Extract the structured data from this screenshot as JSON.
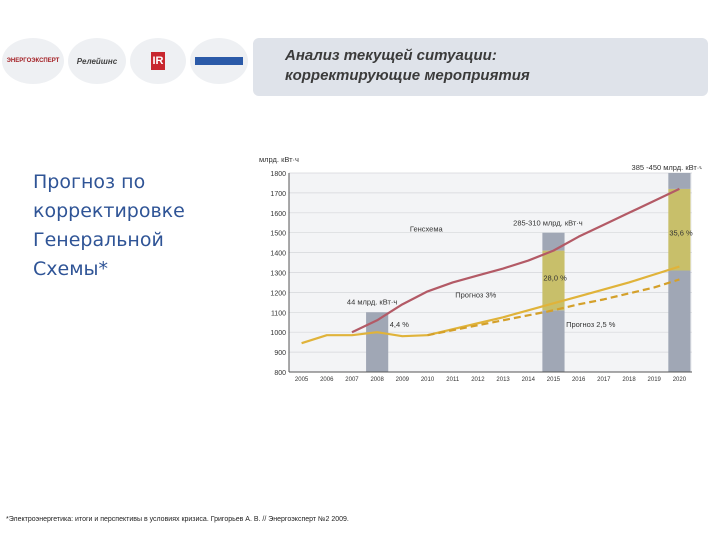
{
  "header": {
    "title_line1": "Анализ текущей ситуации:",
    "title_line2": "корректирующие мероприятия"
  },
  "logos": [
    {
      "name": "energoexpert-logo",
      "text": "ЭНЕРГОЭКСПЕРТ"
    },
    {
      "name": "relejshn-logo",
      "text": "Релейшнс"
    },
    {
      "name": "ir-logo",
      "text": "IR"
    },
    {
      "name": "blue-badge-logo",
      "text": ""
    }
  ],
  "side_title": {
    "line1": "Прогноз по",
    "line2": "корректировке",
    "line3": "Генеральной",
    "line4": "Схемы*"
  },
  "footnote": "*Электроэнергетика: итоги и перспективы в условиях кризиса. Григорьев А. В. // Энергоэксперт №2 2009.",
  "chart_data": {
    "type": "line",
    "ylabel": "млрд. кВт·ч",
    "ylim": [
      800,
      1800
    ],
    "yticks": [
      800,
      900,
      1000,
      1100,
      1200,
      1300,
      1400,
      1500,
      1600,
      1700,
      1800
    ],
    "x": [
      2005,
      2006,
      2007,
      2008,
      2009,
      2010,
      2011,
      2012,
      2013,
      2014,
      2015,
      2016,
      2017,
      2018,
      2019,
      2020
    ],
    "grid": true,
    "series": [
      {
        "name": "Генсхема",
        "color": "#b35a66",
        "style": "solid",
        "x": [
          2007,
          2008,
          2009,
          2010,
          2011,
          2012,
          2013,
          2014,
          2015,
          2016,
          2017,
          2018,
          2019,
          2020
        ],
        "values": [
          1000,
          1060,
          1140,
          1205,
          1250,
          1285,
          1320,
          1360,
          1410,
          1480,
          1540,
          1600,
          1660,
          1720
        ]
      },
      {
        "name": "",
        "color": "#e0b33a",
        "style": "solid",
        "x": [
          2005,
          2006,
          2007,
          2008,
          2009,
          2010
        ],
        "values": [
          945,
          985,
          985,
          1000,
          980,
          985
        ]
      },
      {
        "name": "Прогноз 3%",
        "color": "#e0b33a",
        "style": "solid",
        "x": [
          2010,
          2011,
          2012,
          2013,
          2014,
          2015,
          2016,
          2017,
          2018,
          2019,
          2020
        ],
        "values": [
          985,
          1015,
          1045,
          1075,
          1110,
          1145,
          1180,
          1215,
          1250,
          1290,
          1330
        ]
      },
      {
        "name": "Прогноз 2,5 %",
        "color": "#d4a02a",
        "style": "dashed",
        "x": [
          2010,
          2011,
          2012,
          2013,
          2014,
          2015,
          2016,
          2017,
          2018,
          2019,
          2020
        ],
        "values": [
          985,
          1010,
          1035,
          1060,
          1085,
          1110,
          1140,
          1165,
          1195,
          1225,
          1265
        ]
      }
    ],
    "bars": [
      {
        "x": 2008,
        "bottom": 800,
        "top": 1100,
        "color": "#a0a7b5"
      },
      {
        "x": 2015,
        "bottom": 800,
        "top": 1110,
        "color": "#a0a7b5"
      },
      {
        "x": 2015,
        "bottom": 1110,
        "top": 1410,
        "color": "#c8bf6a"
      },
      {
        "x": 2015,
        "bottom": 1410,
        "top": 1500,
        "color": "#a0a7b5"
      },
      {
        "x": 2020,
        "bottom": 800,
        "top": 1310,
        "color": "#a0a7b5"
      },
      {
        "x": 2020,
        "bottom": 1310,
        "top": 1720,
        "color": "#c8bf6a"
      },
      {
        "x": 2020,
        "bottom": 1720,
        "top": 1800,
        "color": "#a0a7b5"
      }
    ],
    "annotations": [
      {
        "text": "385 -450 млрд. кВт·ч",
        "x": 2018.1,
        "y": 1815,
        "color": "#333333"
      },
      {
        "text": "285-310 млрд. кВт·ч",
        "x": 2013.4,
        "y": 1535,
        "color": "#333333"
      },
      {
        "text": "Генсхема",
        "x": 2009.3,
        "y": 1505,
        "color": "#333333"
      },
      {
        "text": "35,6 %",
        "x": 2019.6,
        "y": 1485,
        "color": "#333333"
      },
      {
        "text": "28,0 %",
        "x": 2014.6,
        "y": 1260,
        "color": "#333333"
      },
      {
        "text": "Прогноз 3%",
        "x": 2011.1,
        "y": 1175,
        "color": "#333333"
      },
      {
        "text": "44 млрд. кВт·ч",
        "x": 2006.8,
        "y": 1140,
        "color": "#333333"
      },
      {
        "text": "4,4 %",
        "x": 2008.5,
        "y": 1025,
        "color": "#333333"
      },
      {
        "text": "Прогноз 2,5 %",
        "x": 2015.5,
        "y": 1025,
        "color": "#333333"
      }
    ]
  }
}
